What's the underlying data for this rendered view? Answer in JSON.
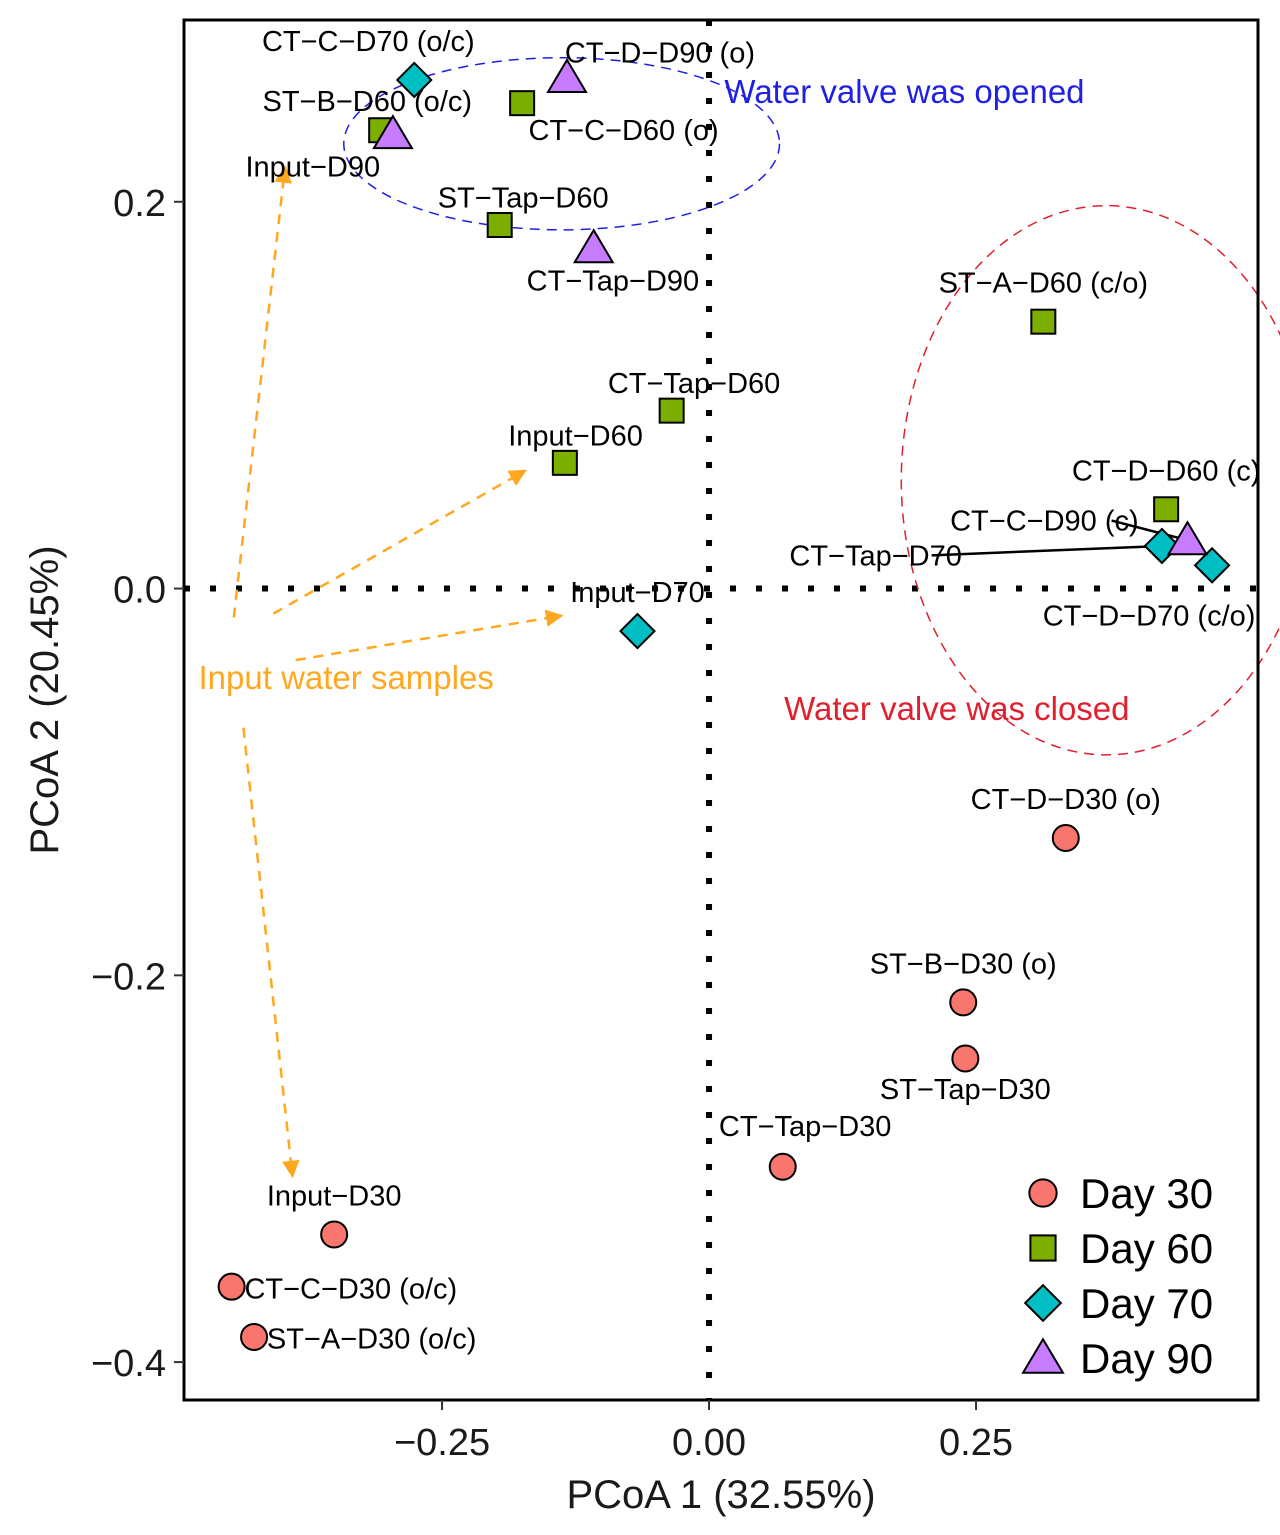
{
  "chart_data": {
    "type": "scatter",
    "title": "",
    "xlabel": "PCoA 1 (32.55%)",
    "ylabel": "PCoA 2 (20.45%)",
    "xlim": [
      -0.4916,
      0.514
    ],
    "ylim": [
      -0.4196,
      0.294
    ],
    "x_ticks": [
      {
        "value": -0.25,
        "label": "−0.25"
      },
      {
        "value": 0.0,
        "label": "0.00"
      },
      {
        "value": 0.25,
        "label": "0.25"
      }
    ],
    "y_ticks": [
      {
        "value": 0.2,
        "label": "0.2"
      },
      {
        "value": 0.0,
        "label": "0.0"
      },
      {
        "value": -0.2,
        "label": "−0.2"
      },
      {
        "value": -0.4,
        "label": "−0.4"
      }
    ],
    "grid": false,
    "reference_lines": {
      "x": 0,
      "y": 0,
      "style": "dotted"
    },
    "legend": {
      "position": "bottom-right",
      "entries": [
        {
          "group": "Day 30",
          "label": "Day 30",
          "shape": "circle",
          "color": "#F8766D"
        },
        {
          "group": "Day 60",
          "label": "Day 60",
          "shape": "square",
          "color": "#7CAE00"
        },
        {
          "group": "Day 70",
          "label": "Day 70",
          "shape": "diamond",
          "color": "#00BFC4"
        },
        {
          "group": "Day 90",
          "label": "Day 90",
          "shape": "triangle",
          "color": "#C77CFF"
        }
      ]
    },
    "series": [
      {
        "name": "Day 30",
        "points": [
          {
            "label": "CT−D−D30 (o)",
            "x": 0.334,
            "y": -0.129,
            "lx": 0.334,
            "ly": -0.114,
            "anchor": "middle"
          },
          {
            "label": "ST−B−D30 (o)",
            "x": 0.238,
            "y": -0.214,
            "lx": 0.238,
            "ly": -0.199,
            "anchor": "middle"
          },
          {
            "label": "ST−Tap−D30",
            "x": 0.24,
            "y": -0.243,
            "lx": 0.24,
            "ly": -0.264,
            "anchor": "middle"
          },
          {
            "label": "CT−Tap−D30",
            "x": 0.069,
            "y": -0.299,
            "lx": 0.09,
            "ly": -0.283,
            "anchor": "middle"
          },
          {
            "label": "Input−D30",
            "x": -0.351,
            "y": -0.334,
            "lx": -0.351,
            "ly": -0.319,
            "anchor": "middle"
          },
          {
            "label": "CT−C−D30 (o/c)",
            "x": -0.447,
            "y": -0.361,
            "lx": -0.435,
            "ly": -0.367,
            "anchor": "start"
          },
          {
            "label": "ST−A−D30 (o/c)",
            "x": -0.426,
            "y": -0.387,
            "lx": -0.414,
            "ly": -0.393,
            "anchor": "start"
          }
        ]
      },
      {
        "name": "Day 60",
        "points": [
          {
            "label": "CT−C−D60 (o)",
            "x": -0.175,
            "y": 0.251,
            "lx": -0.08,
            "ly": 0.232,
            "anchor": "middle"
          },
          {
            "label": "ST−B−D60 (o/c)",
            "x": -0.307,
            "y": 0.237,
            "lx": -0.32,
            "ly": 0.247,
            "anchor": "middle"
          },
          {
            "label": "ST−Tap−D60",
            "x": -0.196,
            "y": 0.188,
            "lx": -0.174,
            "ly": 0.197,
            "anchor": "middle"
          },
          {
            "label": "ST−A−D60 (c/o)",
            "x": 0.313,
            "y": 0.138,
            "lx": 0.313,
            "ly": 0.153,
            "anchor": "middle"
          },
          {
            "label": "CT−Tap−D60",
            "x": -0.035,
            "y": 0.092,
            "lx": -0.014,
            "ly": 0.101,
            "anchor": "middle"
          },
          {
            "label": "Input−D60",
            "x": -0.135,
            "y": 0.065,
            "lx": -0.125,
            "ly": 0.074,
            "anchor": "middle"
          },
          {
            "label": "CT−D−D60 (c)",
            "x": 0.428,
            "y": 0.041,
            "lx": 0.428,
            "ly": 0.056,
            "anchor": "middle"
          }
        ]
      },
      {
        "name": "Day 70",
        "points": [
          {
            "label": "CT−C−D70 (o/c)",
            "x": -0.276,
            "y": 0.263,
            "lx": -0.319,
            "ly": 0.278,
            "anchor": "middle"
          },
          {
            "label": "Input−D70",
            "x": -0.067,
            "y": -0.022,
            "lx": -0.067,
            "ly": -0.007,
            "anchor": "middle"
          },
          {
            "label": "CT−Tap−D70",
            "x": 0.424,
            "y": 0.022,
            "lx": 0.156,
            "ly": 0.012,
            "anchor": "middle",
            "leader": true
          },
          {
            "label": "CT−D−D70 (c/o)",
            "x": 0.471,
            "y": 0.012,
            "lx": 0.412,
            "ly": -0.019,
            "anchor": "middle"
          }
        ]
      },
      {
        "name": "Day 90",
        "points": [
          {
            "label": "CT−D−D90 (o)",
            "x": -0.133,
            "y": 0.264,
            "lx": -0.046,
            "ly": 0.272,
            "anchor": "middle"
          },
          {
            "label": "Input−D90",
            "x": -0.296,
            "y": 0.235,
            "lx": -0.371,
            "ly": 0.213,
            "anchor": "middle"
          },
          {
            "label": "CT−Tap−D90",
            "x": -0.108,
            "y": 0.176,
            "lx": -0.09,
            "ly": 0.154,
            "anchor": "middle"
          },
          {
            "label": "CT−C−D90 (c)",
            "x": 0.448,
            "y": 0.025,
            "lx": 0.314,
            "ly": 0.03,
            "anchor": "middle",
            "leader": true
          }
        ]
      }
    ],
    "annotations": [
      {
        "text": "Water valve was opened",
        "x": 0.183,
        "y": 0.251,
        "color": "#1F1FE6",
        "anchor": "middle"
      },
      {
        "text": "Water valve was closed",
        "x": 0.232,
        "y": -0.068,
        "color": "#E0202E",
        "anchor": "middle"
      },
      {
        "text": "Input water samples",
        "x": -0.478,
        "y": -0.052,
        "color": "#FFA81F",
        "anchor": "start"
      }
    ],
    "ellipses": [
      {
        "name": "opened-group",
        "cx": -0.138,
        "cy": 0.23,
        "rx": 0.204,
        "ry": 0.0445,
        "color": "#1F1FE6"
      },
      {
        "name": "closed-group",
        "cx": 0.372,
        "cy": 0.056,
        "rx": 0.192,
        "ry": 0.142,
        "color": "#E0202E"
      }
    ],
    "arrows": [
      {
        "name": "to-input-d90",
        "from": [
          -0.445,
          -0.015
        ],
        "to": [
          -0.397,
          0.218
        ]
      },
      {
        "name": "to-input-d60",
        "from": [
          -0.408,
          -0.013
        ],
        "to": [
          -0.172,
          0.061
        ]
      },
      {
        "name": "to-input-d70",
        "from": [
          -0.387,
          -0.037
        ],
        "to": [
          -0.138,
          -0.014
        ]
      },
      {
        "name": "to-input-d30",
        "from": [
          -0.436,
          -0.072
        ],
        "to": [
          -0.39,
          -0.304
        ]
      }
    ],
    "arrow_color": "#FFA81F"
  }
}
